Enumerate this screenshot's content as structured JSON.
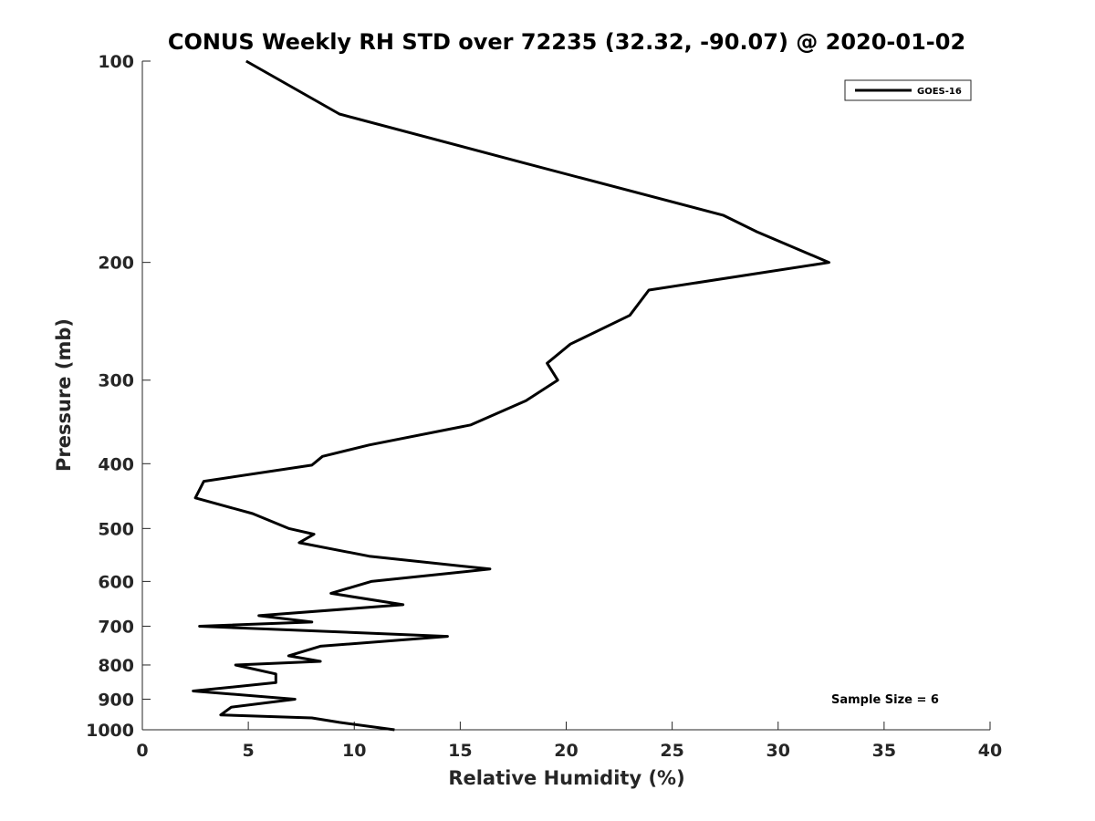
{
  "chart_data": {
    "type": "line",
    "title": "CONUS Weekly RH STD over 72235 (32.32, -90.07) @ 2020-01-02",
    "xlabel": "Relative Humidity (%)",
    "ylabel": "Pressure (mb)",
    "xlim": [
      0,
      40
    ],
    "ylim": [
      100,
      1000
    ],
    "yscale": "log",
    "yreversed": true,
    "x_ticks": [
      0,
      5,
      10,
      15,
      20,
      25,
      30,
      35,
      40
    ],
    "y_ticks": [
      100,
      200,
      300,
      400,
      500,
      600,
      700,
      800,
      900,
      1000
    ],
    "grid": false,
    "legend": {
      "position": "top-right",
      "entries": [
        "GOES-16"
      ]
    },
    "annotation": "Sample Size = 6",
    "series": [
      {
        "name": "GOES-16",
        "color": "#000000",
        "points": [
          [
            4.9,
            100
          ],
          [
            9.3,
            120
          ],
          [
            18.0,
            142
          ],
          [
            27.4,
            170
          ],
          [
            29.0,
            180
          ],
          [
            32.4,
            200
          ],
          [
            23.9,
            220
          ],
          [
            23.0,
            240
          ],
          [
            20.2,
            265
          ],
          [
            19.1,
            283
          ],
          [
            19.6,
            300
          ],
          [
            18.1,
            322
          ],
          [
            15.5,
            350
          ],
          [
            10.7,
            375
          ],
          [
            8.5,
            390
          ],
          [
            8.0,
            402
          ],
          [
            2.9,
            425
          ],
          [
            2.5,
            450
          ],
          [
            5.2,
            475
          ],
          [
            6.9,
            500
          ],
          [
            8.1,
            510
          ],
          [
            7.4,
            525
          ],
          [
            10.7,
            550
          ],
          [
            16.4,
            575
          ],
          [
            10.8,
            600
          ],
          [
            8.9,
            625
          ],
          [
            12.3,
            650
          ],
          [
            5.5,
            675
          ],
          [
            8.0,
            690
          ],
          [
            2.7,
            700
          ],
          [
            14.4,
            725
          ],
          [
            8.4,
            750
          ],
          [
            6.9,
            775
          ],
          [
            8.4,
            790
          ],
          [
            4.4,
            800
          ],
          [
            6.3,
            825
          ],
          [
            6.3,
            850
          ],
          [
            2.4,
            875
          ],
          [
            7.2,
            900
          ],
          [
            4.2,
            925
          ],
          [
            3.7,
            950
          ],
          [
            8.0,
            960
          ],
          [
            9.3,
            975
          ],
          [
            11.9,
            1000
          ]
        ]
      }
    ]
  }
}
